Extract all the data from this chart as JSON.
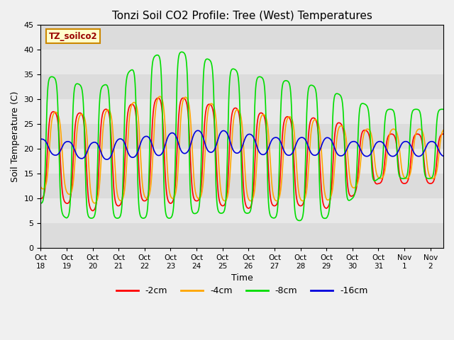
{
  "title": "Tonzi Soil CO2 Profile: Tree (West) Temperatures",
  "ylabel": "Soil Temperature (C)",
  "xlabel": "Time",
  "watermark": "TZ_soilco2",
  "ylim": [
    0,
    45
  ],
  "yticks": [
    0,
    5,
    10,
    15,
    20,
    25,
    30,
    35,
    40,
    45
  ],
  "tick_labels": [
    "Oct 18",
    "Oct 19",
    "Oct 20",
    "Oct 21",
    "Oct 22",
    "Oct 23",
    "Oct 24",
    "Oct 25",
    "Oct 26",
    "Oct 27",
    "Oct 28",
    "Oct 29",
    "Oct 30",
    "Oct 31",
    "Nov 1",
    "Nov 2"
  ],
  "colors": {
    "-2cm": "#ff0000",
    "-4cm": "#ffa500",
    "-8cm": "#00dd00",
    "-16cm": "#0000dd"
  },
  "legend_labels": [
    "-2cm",
    "-4cm",
    "-8cm",
    "-16cm"
  ],
  "n_days": 15.5,
  "points_per_day": 144,
  "series": {
    "-2cm": {
      "amplitudes": [
        9,
        9,
        10,
        10,
        10,
        11,
        10,
        10,
        10,
        9,
        9,
        9,
        7,
        5,
        5
      ],
      "baselines": [
        19,
        18,
        17.5,
        18.5,
        19.5,
        20,
        19.5,
        18.5,
        18,
        17.5,
        17.5,
        17,
        17.5,
        18,
        18.5
      ],
      "phase": 0.0,
      "sharpness": 1.8
    },
    "-4cm": {
      "amplitudes": [
        8,
        8,
        9,
        9.5,
        10,
        10.5,
        10,
        9.5,
        9,
        8.5,
        8.5,
        8,
        6,
        5,
        4.5
      ],
      "baselines": [
        20,
        19,
        18,
        19,
        20,
        20.5,
        20,
        19,
        18.5,
        18,
        18,
        17.5,
        18,
        19,
        19.5
      ],
      "phase": 0.08,
      "sharpness": 1.5
    },
    "-8cm": {
      "amplitudes": [
        13,
        14,
        13,
        14,
        16,
        17,
        16,
        15,
        14,
        14,
        14,
        13,
        10,
        7,
        6
      ],
      "baselines": [
        22,
        20,
        19,
        20,
        22,
        23,
        23,
        22,
        21,
        20,
        19.5,
        19,
        20,
        21,
        22
      ],
      "phase": -0.05,
      "sharpness": 2.5
    },
    "-16cm": {
      "amplitudes": [
        1.5,
        1.5,
        1.8,
        2.0,
        2.0,
        2.2,
        2.2,
        2.2,
        2.0,
        1.8,
        1.8,
        1.8,
        1.5,
        1.5,
        1.2
      ],
      "baselines": [
        20.5,
        20,
        19.5,
        20,
        20.5,
        21,
        21.5,
        21.5,
        21,
        20.5,
        20.5,
        20.5,
        20,
        20,
        20
      ],
      "phase": 0.55,
      "sharpness": 1.0
    }
  }
}
